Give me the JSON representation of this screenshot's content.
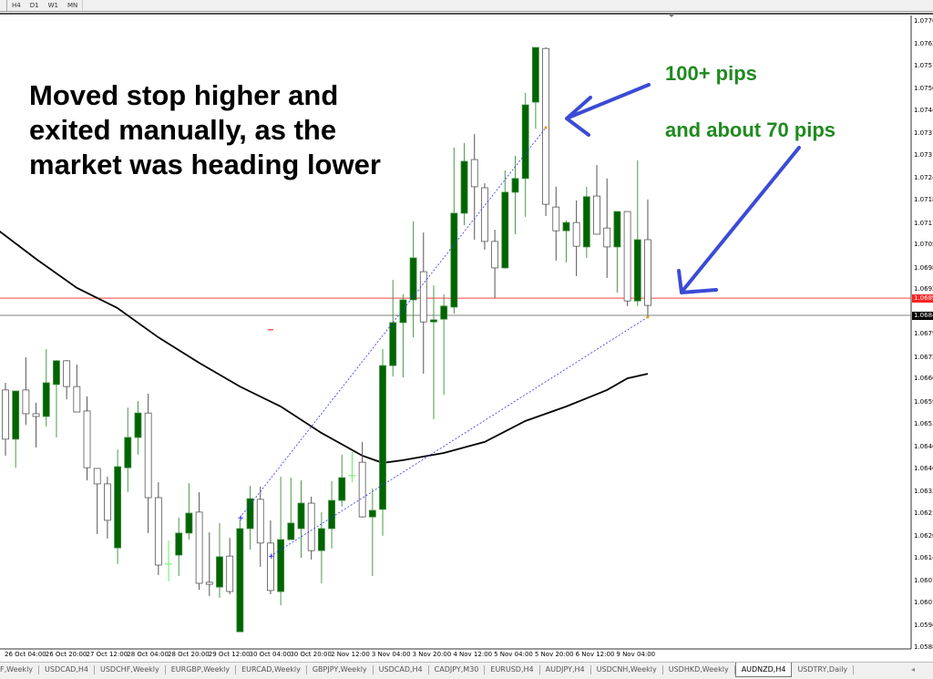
{
  "toolbar": {
    "timeframes": [
      "H4",
      "D1",
      "W1",
      "MN"
    ]
  },
  "symbol_tab_active": "AUDNZD,H4",
  "annotations": {
    "note_lines": [
      "Moved stop higher and",
      "exited manually, as the",
      "market was heading lower"
    ],
    "pips_first": "100+ pips",
    "pips_second": "and about 70 pips"
  },
  "colors": {
    "bull": "#006400",
    "bear": "#ffffff",
    "ma": "#000000",
    "bid_line": "#ff4040",
    "ask_line": "#808080",
    "arrows": "#3b4bd6",
    "trade_line": "#3030ff"
  },
  "chart_data": {
    "type": "candlestick",
    "symbol": "AUDNZD,H4",
    "ylim": [
      1.05813,
      1.077
    ],
    "price_labels": [
      "1.07700",
      "1.07633",
      "1.07570",
      "1.07503",
      "1.07440",
      "1.07373",
      "1.07310",
      "1.07243",
      "1.07180",
      "1.07113",
      "1.07050",
      "1.06983",
      "1.06920",
      "1.06790",
      "1.06723",
      "1.06660",
      "1.06593",
      "1.06530",
      "1.06463",
      "1.06400",
      "1.06333",
      "1.06270",
      "1.06203",
      "1.06140",
      "1.06073",
      "1.06010",
      "1.05943",
      "1.05880",
      "1.05813"
    ],
    "time_labels": [
      "26 Oct 04:00",
      "26 Oct 20:00",
      "27 Oct 12:00",
      "28 Oct 04:00",
      "28 Oct 20:00",
      "29 Oct 12:00",
      "30 Oct 04:00",
      "30 Oct 20:00",
      "2 Nov 12:00",
      "3 Nov 04:00",
      "3 Nov 20:00",
      "4 Nov 12:00",
      "5 Nov 04:00",
      "5 Nov 20:00",
      "6 Nov 12:00",
      "9 Nov 04:00"
    ],
    "bid_price": "1.06894",
    "ask_price": "1.06844",
    "candles_ohlc": [
      [
        1.06627,
        1.06648,
        1.06436,
        1.06484
      ],
      [
        1.06484,
        1.06624,
        1.06401,
        1.06624
      ],
      [
        1.06627,
        1.06722,
        1.06526,
        1.06558
      ],
      [
        1.06558,
        1.0659,
        1.0646,
        1.0655
      ],
      [
        1.0655,
        1.06746,
        1.06521,
        1.06648
      ],
      [
        1.06643,
        1.06714,
        1.06489,
        1.06712
      ],
      [
        1.06712,
        1.06714,
        1.066,
        1.06637
      ],
      [
        1.06637,
        1.06701,
        1.06563,
        1.06563
      ],
      [
        1.06566,
        1.06608,
        1.06364,
        1.06401
      ],
      [
        1.06399,
        1.06399,
        1.06208,
        1.06354
      ],
      [
        1.06354,
        1.06375,
        1.06195,
        1.06248
      ],
      [
        1.06168,
        1.06454,
        1.06121,
        1.06404
      ],
      [
        1.06401,
        1.06576,
        1.0633,
        1.06489
      ],
      [
        1.06489,
        1.06595,
        1.06439,
        1.0656
      ],
      [
        1.0656,
        1.06616,
        1.06211,
        1.06314
      ],
      [
        1.06314,
        1.06359,
        1.06089,
        1.06118
      ],
      [
        1.06121,
        1.06189,
        1.0607,
        1.06122
      ],
      [
        1.06147,
        1.06256,
        1.06086,
        1.06211
      ],
      [
        1.06211,
        1.06356,
        1.06192,
        1.06269
      ],
      [
        1.06272,
        1.0633,
        1.06046,
        1.06065
      ],
      [
        1.06068,
        1.06213,
        1.06028,
        1.06062
      ],
      [
        1.06054,
        1.0624,
        1.06023,
        1.06142
      ],
      [
        1.06144,
        1.06197,
        1.06033,
        1.06041
      ],
      [
        1.05924,
        1.0625,
        1.05924,
        1.06224
      ],
      [
        1.06224,
        1.06348,
        1.06163,
        1.06311
      ],
      [
        1.06309,
        1.06346,
        1.06113,
        1.06182
      ],
      [
        1.06182,
        1.06248,
        1.06033,
        1.06044
      ],
      [
        1.06041,
        1.06375,
        1.06001,
        1.06192
      ],
      [
        1.06192,
        1.06372,
        1.06192,
        1.0624
      ],
      [
        1.06224,
        1.06364,
        1.06139,
        1.06298
      ],
      [
        1.06298,
        1.06317,
        1.06134,
        1.0616
      ],
      [
        1.0616,
        1.06272,
        1.06065,
        1.06224
      ],
      [
        1.06224,
        1.06362,
        1.06166,
        1.06306
      ],
      [
        1.06306,
        1.06439,
        1.06288,
        1.06372
      ],
      [
        1.06378,
        1.06447,
        1.06359,
        1.06379
      ],
      [
        1.06417,
        1.06476,
        1.06256,
        1.06258
      ],
      [
        1.06258,
        1.06341,
        1.06086,
        1.06277
      ],
      [
        1.0628,
        1.06746,
        1.06203,
        1.06698
      ],
      [
        1.06698,
        1.06947,
        1.06666,
        1.06823
      ],
      [
        1.06823,
        1.06905,
        1.06664,
        1.06889
      ],
      [
        1.06889,
        1.07117,
        1.0678,
        1.07011
      ],
      [
        1.06971,
        1.07085,
        1.06674,
        1.06825
      ],
      [
        1.06825,
        1.06931,
        1.06542,
        1.06831
      ],
      [
        1.06833,
        1.06905,
        1.06613,
        1.06871
      ],
      [
        1.06868,
        1.07332,
        1.06849,
        1.07141
      ],
      [
        1.07141,
        1.07345,
        1.07106,
        1.07292
      ],
      [
        1.07297,
        1.07371,
        1.07064,
        1.07218
      ],
      [
        1.07215,
        1.07228,
        1.07035,
        1.07059
      ],
      [
        1.07059,
        1.07093,
        1.06894,
        1.06982
      ],
      [
        1.06982,
        1.07265,
        1.0698,
        1.07202
      ],
      [
        1.07202,
        1.07308,
        1.0708,
        1.07242
      ],
      [
        1.07242,
        1.07491,
        1.0713,
        1.07456
      ],
      [
        1.07464,
        1.07623,
        1.07387,
        1.07623
      ],
      [
        1.0762,
        1.07623,
        1.07133,
        1.07167
      ],
      [
        1.07159,
        1.07218,
        1.07003,
        1.0709
      ],
      [
        1.0709,
        1.0712,
        1.06998,
        1.07114
      ],
      [
        1.07114,
        1.07178,
        1.06958,
        1.07045
      ],
      [
        1.07043,
        1.07218,
        1.07011,
        1.07189
      ],
      [
        1.07191,
        1.07281,
        1.0708,
        1.0708
      ],
      [
        1.07098,
        1.07242,
        1.06953,
        1.07043
      ],
      [
        1.07043,
        1.07146,
        1.0691,
        1.07146
      ],
      [
        1.07146,
        1.07146,
        1.06871,
        1.06886
      ],
      [
        1.06886,
        1.07295,
        1.06871,
        1.07064
      ],
      [
        1.07064,
        1.07181,
        1.06839,
        1.06873
      ]
    ],
    "moving_average": [
      [
        0,
        1.07098
      ],
      [
        4,
        1.07008
      ],
      [
        8,
        1.06924
      ],
      [
        12,
        1.06865
      ],
      [
        16,
        1.0678
      ],
      [
        20,
        1.06706
      ],
      [
        24,
        1.06637
      ],
      [
        28,
        1.06579
      ],
      [
        32,
        1.06502
      ],
      [
        36,
        1.06436
      ],
      [
        38,
        1.06415
      ],
      [
        40,
        1.06423
      ],
      [
        44,
        1.06444
      ],
      [
        48,
        1.06476
      ],
      [
        52,
        1.06537
      ],
      [
        56,
        1.06579
      ],
      [
        60,
        1.06627
      ],
      [
        62,
        1.06661
      ],
      [
        64,
        1.06674
      ]
    ],
    "trade_lines": [
      {
        "from": [
          24,
          1.06256
        ],
        "to": [
          54,
          1.0739
        ]
      },
      {
        "from": [
          27,
          1.06144
        ],
        "to": [
          64,
          1.06839
        ]
      }
    ]
  },
  "tabs": [
    "F,Weekly",
    "USDCAD,H4",
    "USDCHF,Weekly",
    "EURGBP,Weekly",
    "EURCAD,Weekly",
    "GBPJPY,Weekly",
    "USDCAD,H4",
    "CADJPY,M30",
    "EURUSD,H4",
    "AUDJPY,H4",
    "USDCNH,Weekly",
    "USDHKD,Weekly",
    "AUDNZD,H4",
    "USDTRY,Daily"
  ],
  "scroll_glyph": "◂"
}
